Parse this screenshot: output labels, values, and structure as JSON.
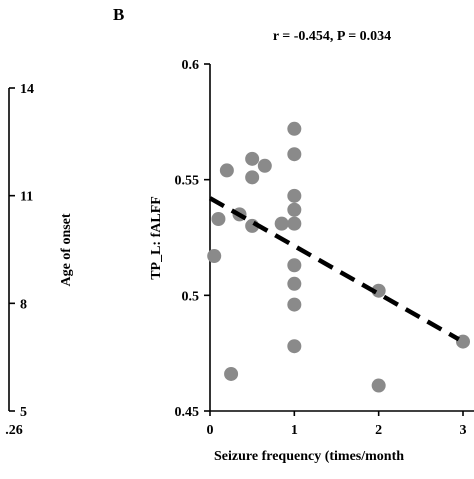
{
  "chart_data": [
    {
      "type": "axis-fragment",
      "ylabel": "Age of onset",
      "y_ticks": [
        "5",
        "8",
        "11",
        "14"
      ],
      "ylim": [
        5,
        14
      ],
      "x_ticks": [
        ".26"
      ]
    },
    {
      "type": "scatter",
      "panel_label": "B",
      "title": "r = -0.454, P = 0.034",
      "xlabel": "Seizure frequency (times/month",
      "ylabel": "TP_L: fALFF",
      "xlim": [
        0,
        3
      ],
      "ylim": [
        0.45,
        0.6
      ],
      "x_ticks": [
        "0",
        "1",
        "2",
        "3"
      ],
      "y_ticks": [
        "0.45",
        "0.5",
        "0.55",
        "0.6"
      ],
      "points": [
        {
          "x": 0.05,
          "y": 0.517
        },
        {
          "x": 0.1,
          "y": 0.533
        },
        {
          "x": 0.2,
          "y": 0.554
        },
        {
          "x": 0.25,
          "y": 0.466
        },
        {
          "x": 0.35,
          "y": 0.535
        },
        {
          "x": 0.5,
          "y": 0.559
        },
        {
          "x": 0.5,
          "y": 0.551
        },
        {
          "x": 0.5,
          "y": 0.53
        },
        {
          "x": 0.65,
          "y": 0.556
        },
        {
          "x": 0.85,
          "y": 0.531
        },
        {
          "x": 1.0,
          "y": 0.572
        },
        {
          "x": 1.0,
          "y": 0.561
        },
        {
          "x": 1.0,
          "y": 0.543
        },
        {
          "x": 1.0,
          "y": 0.537
        },
        {
          "x": 1.0,
          "y": 0.531
        },
        {
          "x": 1.0,
          "y": 0.513
        },
        {
          "x": 1.0,
          "y": 0.505
        },
        {
          "x": 1.0,
          "y": 0.496
        },
        {
          "x": 1.0,
          "y": 0.478
        },
        {
          "x": 2.0,
          "y": 0.502
        },
        {
          "x": 2.0,
          "y": 0.461
        },
        {
          "x": 3.0,
          "y": 0.48
        }
      ],
      "trendline": {
        "x": [
          0.0,
          2.95
        ],
        "y": [
          0.542,
          0.481
        ],
        "style": "dashed"
      },
      "point_color": "#8a8a8a",
      "line_color": "#000000"
    }
  ]
}
